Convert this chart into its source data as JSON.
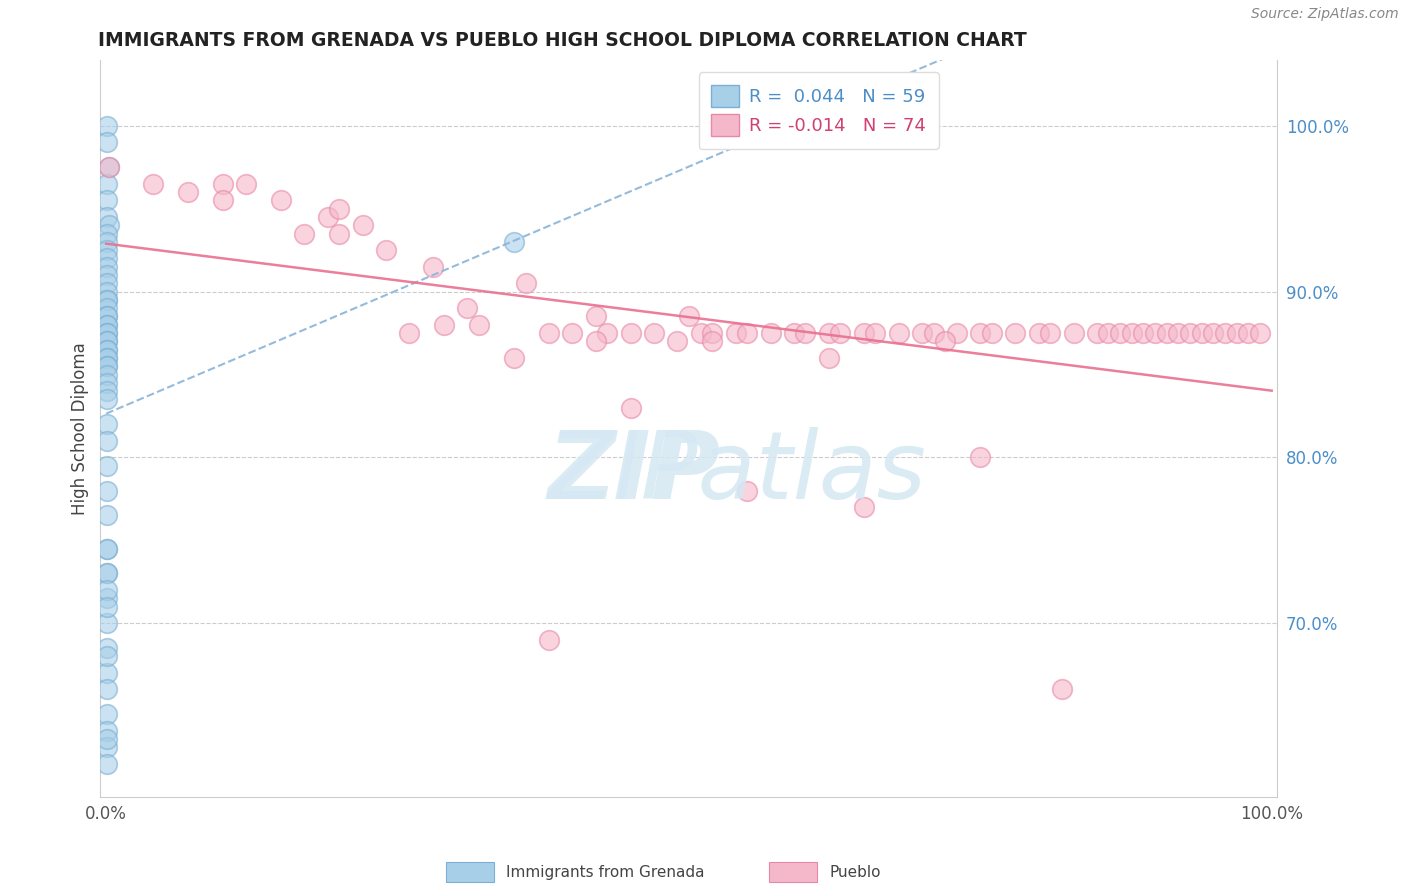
{
  "title": "IMMIGRANTS FROM GRENADA VS PUEBLO HIGH SCHOOL DIPLOMA CORRELATION CHART",
  "source": "Source: ZipAtlas.com",
  "ylabel": "High School Diploma",
  "xlim": [
    -0.005,
    1.005
  ],
  "ylim": [
    0.595,
    1.04
  ],
  "yticks": [
    0.7,
    0.8,
    0.9,
    1.0
  ],
  "ytick_labels": [
    "70.0%",
    "80.0%",
    "90.0%",
    "100.0%"
  ],
  "xticks": [
    0.0,
    1.0
  ],
  "xtick_labels": [
    "0.0%",
    "100.0%"
  ],
  "legend_labels": [
    "Immigrants from Grenada",
    "Pueblo"
  ],
  "R_blue": 0.044,
  "N_blue": 59,
  "R_pink": -0.014,
  "N_pink": 74,
  "blue_marker_color": "#a8cfe8",
  "blue_edge_color": "#7bafd4",
  "pink_marker_color": "#f5b8cb",
  "pink_edge_color": "#e888a8",
  "blue_line_color": "#8ab4d8",
  "pink_line_color": "#e87090",
  "watermark_color": "#d5e8f3",
  "background_color": "#ffffff",
  "blue_x": [
    0.001,
    0.001,
    0.002,
    0.001,
    0.001,
    0.001,
    0.002,
    0.001,
    0.001,
    0.001,
    0.001,
    0.001,
    0.001,
    0.001,
    0.001,
    0.001,
    0.001,
    0.001,
    0.001,
    0.001,
    0.001,
    0.001,
    0.001,
    0.001,
    0.001,
    0.001,
    0.001,
    0.001,
    0.001,
    0.001,
    0.001,
    0.001,
    0.001,
    0.001,
    0.001,
    0.001,
    0.001,
    0.001,
    0.001,
    0.001,
    0.001,
    0.001,
    0.001,
    0.001,
    0.001,
    0.001,
    0.001,
    0.001,
    0.001,
    0.001,
    0.001,
    0.001,
    0.001,
    0.001,
    0.001,
    0.001,
    0.001,
    0.001,
    0.35
  ],
  "blue_y": [
    1.0,
    0.99,
    0.975,
    0.965,
    0.955,
    0.945,
    0.94,
    0.935,
    0.93,
    0.925,
    0.92,
    0.915,
    0.91,
    0.905,
    0.9,
    0.895,
    0.895,
    0.89,
    0.885,
    0.885,
    0.88,
    0.88,
    0.875,
    0.875,
    0.87,
    0.87,
    0.865,
    0.865,
    0.86,
    0.86,
    0.855,
    0.855,
    0.85,
    0.845,
    0.84,
    0.835,
    0.82,
    0.81,
    0.795,
    0.78,
    0.765,
    0.745,
    0.73,
    0.715,
    0.7,
    0.685,
    0.67,
    0.66,
    0.645,
    0.635,
    0.625,
    0.615,
    0.63,
    0.73,
    0.745,
    0.72,
    0.71,
    0.68,
    0.93
  ],
  "pink_x": [
    0.002,
    0.04,
    0.07,
    0.1,
    0.1,
    0.12,
    0.15,
    0.17,
    0.19,
    0.2,
    0.2,
    0.22,
    0.24,
    0.26,
    0.28,
    0.29,
    0.31,
    0.32,
    0.35,
    0.36,
    0.38,
    0.4,
    0.42,
    0.43,
    0.45,
    0.47,
    0.49,
    0.5,
    0.51,
    0.52,
    0.54,
    0.55,
    0.57,
    0.59,
    0.6,
    0.62,
    0.63,
    0.65,
    0.66,
    0.68,
    0.7,
    0.71,
    0.73,
    0.75,
    0.76,
    0.78,
    0.8,
    0.81,
    0.83,
    0.85,
    0.86,
    0.87,
    0.88,
    0.89,
    0.9,
    0.91,
    0.92,
    0.93,
    0.94,
    0.95,
    0.96,
    0.97,
    0.98,
    0.99,
    0.45,
    0.55,
    0.65,
    0.75,
    0.38,
    0.42,
    0.52,
    0.62,
    0.72,
    0.82
  ],
  "pink_y": [
    0.975,
    0.965,
    0.96,
    0.965,
    0.955,
    0.965,
    0.955,
    0.935,
    0.945,
    0.935,
    0.95,
    0.94,
    0.925,
    0.875,
    0.915,
    0.88,
    0.89,
    0.88,
    0.86,
    0.905,
    0.875,
    0.875,
    0.885,
    0.875,
    0.875,
    0.875,
    0.87,
    0.885,
    0.875,
    0.875,
    0.875,
    0.875,
    0.875,
    0.875,
    0.875,
    0.875,
    0.875,
    0.875,
    0.875,
    0.875,
    0.875,
    0.875,
    0.875,
    0.875,
    0.875,
    0.875,
    0.875,
    0.875,
    0.875,
    0.875,
    0.875,
    0.875,
    0.875,
    0.875,
    0.875,
    0.875,
    0.875,
    0.875,
    0.875,
    0.875,
    0.875,
    0.875,
    0.875,
    0.875,
    0.83,
    0.78,
    0.77,
    0.8,
    0.69,
    0.87,
    0.87,
    0.86,
    0.87,
    0.66
  ]
}
